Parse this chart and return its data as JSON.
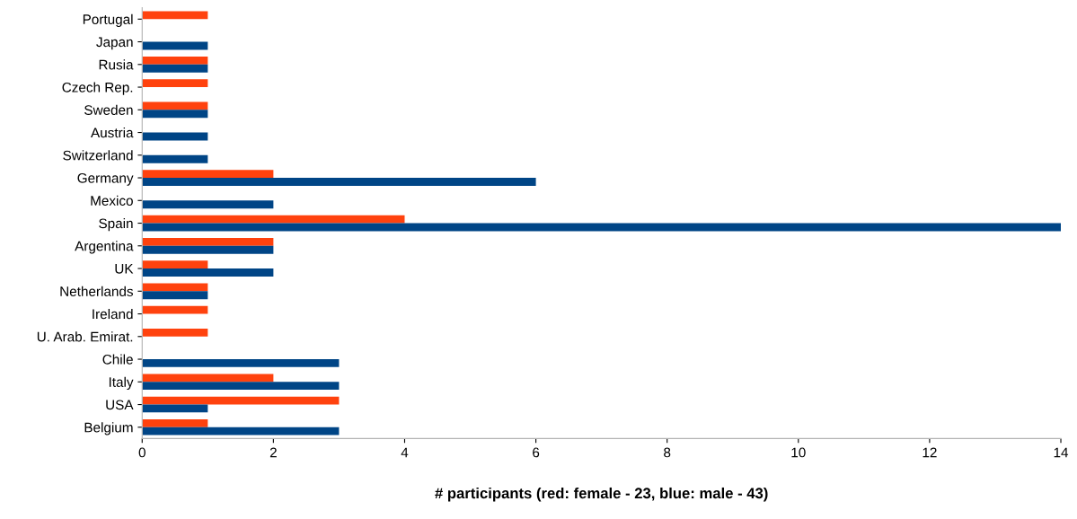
{
  "chart_data": {
    "type": "bar",
    "orientation": "horizontal",
    "xlabel": "# participants (red: female - 23, blue: male - 43)",
    "categories": [
      "Portugal",
      "Japan",
      "Rusia",
      "Czech Rep.",
      "Sweden",
      "Austria",
      "Switzerland",
      "Germany",
      "Mexico",
      "Spain",
      "Argentina",
      "UK",
      "Netherlands",
      "Ireland",
      "U. Arab. Emirat.",
      "Chile",
      "Italy",
      "USA",
      "Belgium"
    ],
    "series": [
      {
        "color": "#ff420e",
        "values": [
          1,
          null,
          1,
          1,
          1,
          null,
          null,
          2,
          null,
          4,
          2,
          1,
          1,
          1,
          1,
          null,
          2,
          3,
          1
        ]
      },
      {
        "color": "#004586",
        "values": [
          null,
          1,
          1,
          null,
          1,
          1,
          1,
          6,
          2,
          14,
          2,
          2,
          1,
          null,
          null,
          3,
          3,
          1,
          3
        ]
      }
    ],
    "xlim": [
      0,
      14
    ],
    "xticks": [
      0,
      2,
      4,
      6,
      8,
      10,
      12,
      14
    ],
    "grid": false,
    "legend": false
  }
}
